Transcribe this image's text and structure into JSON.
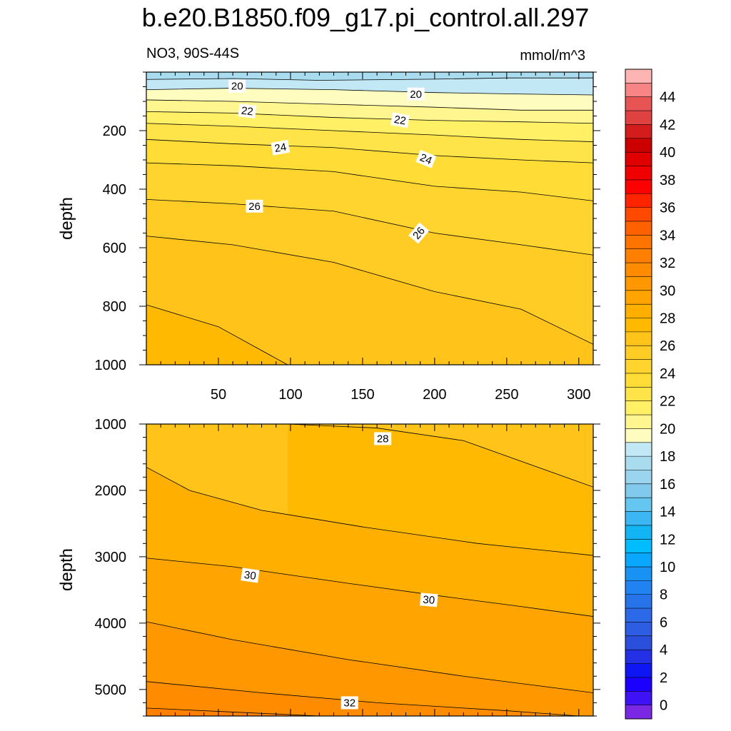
{
  "title": "b.e20.B1850.f09_g17.pi_control.all.297",
  "subtitle_left": "NO3, 90S-44S",
  "subtitle_right": "mmol/m^3",
  "chart_data": [
    {
      "type": "contour",
      "panel": "upper",
      "ylabel": "depth",
      "xlabel": "",
      "xlim": [
        0,
        310
      ],
      "ylim": [
        1000,
        0
      ],
      "xticks": [
        50,
        100,
        150,
        200,
        250,
        300
      ],
      "yticks": [
        200,
        400,
        600,
        800,
        1000
      ],
      "contour_lines": [
        {
          "level": 19,
          "points": [
            [
              0,
              25
            ],
            [
              60,
              22
            ],
            [
              120,
              28
            ],
            [
              200,
              24
            ],
            [
              250,
              20
            ],
            [
              310,
              20
            ]
          ]
        },
        {
          "level": 20,
          "points": [
            [
              0,
              60
            ],
            [
              60,
              55
            ],
            [
              130,
              60
            ],
            [
              200,
              70
            ],
            [
              260,
              75
            ],
            [
              310,
              78
            ]
          ]
        },
        {
          "level": 21,
          "points": [
            [
              0,
              95
            ],
            [
              60,
              100
            ],
            [
              130,
              110
            ],
            [
              200,
              120
            ],
            [
              260,
              130
            ],
            [
              310,
              130
            ]
          ]
        },
        {
          "level": 22,
          "points": [
            [
              0,
              135
            ],
            [
              60,
              140
            ],
            [
              130,
              155
            ],
            [
              200,
              165
            ],
            [
              260,
              170
            ],
            [
              310,
              175
            ]
          ]
        },
        {
          "level": 23,
          "points": [
            [
              0,
              175
            ],
            [
              60,
              185
            ],
            [
              130,
              200
            ],
            [
              200,
              215
            ],
            [
              260,
              230
            ],
            [
              310,
              238
            ]
          ]
        },
        {
          "level": 24,
          "points": [
            [
              0,
              230
            ],
            [
              60,
              245
            ],
            [
              130,
              258
            ],
            [
              200,
              285
            ],
            [
              260,
              300
            ],
            [
              310,
              310
            ]
          ]
        },
        {
          "level": 25,
          "points": [
            [
              0,
              310
            ],
            [
              60,
              320
            ],
            [
              130,
              340
            ],
            [
              200,
              390
            ],
            [
              260,
              410
            ],
            [
              310,
              440
            ]
          ]
        },
        {
          "level": 26,
          "points": [
            [
              0,
              435
            ],
            [
              60,
              450
            ],
            [
              130,
              475
            ],
            [
              200,
              550
            ],
            [
              260,
              590
            ],
            [
              310,
              625
            ]
          ]
        },
        {
          "level": 27,
          "points": [
            [
              0,
              560
            ],
            [
              60,
              590
            ],
            [
              130,
              650
            ],
            [
              200,
              750
            ],
            [
              260,
              810
            ],
            [
              310,
              930
            ]
          ]
        },
        {
          "level": 28,
          "points": [
            [
              0,
              795
            ],
            [
              50,
              870
            ],
            [
              98,
              1000
            ]
          ]
        }
      ],
      "line_labels": [
        {
          "text": "20",
          "x": 63,
          "y": 48,
          "angle": 0
        },
        {
          "text": "20",
          "x": 187,
          "y": 75,
          "angle": 0
        },
        {
          "text": "22",
          "x": 70,
          "y": 133,
          "angle": 7
        },
        {
          "text": "22",
          "x": 176,
          "y": 164,
          "angle": 10
        },
        {
          "text": "24",
          "x": 93,
          "y": 258,
          "angle": -10
        },
        {
          "text": "24",
          "x": 194,
          "y": 297,
          "angle": 22
        },
        {
          "text": "26",
          "x": 75,
          "y": 458,
          "angle": 0
        },
        {
          "text": "26",
          "x": 189,
          "y": 550,
          "angle": -50
        }
      ]
    },
    {
      "type": "contour",
      "panel": "lower",
      "ylabel": "depth",
      "xlabel": "",
      "xlim": [
        0,
        310
      ],
      "ylim": [
        5400,
        1000
      ],
      "yticks": [
        1000,
        2000,
        3000,
        4000,
        5000
      ],
      "contour_lines": [
        {
          "level": 28,
          "points": [
            [
              98,
              1000
            ],
            [
              160,
              1060
            ],
            [
              220,
              1250
            ],
            [
              310,
              1950
            ]
          ]
        },
        {
          "level": 29,
          "points": [
            [
              0,
              1650
            ],
            [
              30,
              2000
            ],
            [
              80,
              2300
            ],
            [
              150,
              2550
            ],
            [
              230,
              2800
            ],
            [
              310,
              2980
            ]
          ]
        },
        {
          "level": 30,
          "points": [
            [
              0,
              3020
            ],
            [
              60,
              3150
            ],
            [
              140,
              3400
            ],
            [
              200,
              3580
            ],
            [
              260,
              3750
            ],
            [
              310,
              3900
            ]
          ]
        },
        {
          "level": 31,
          "points": [
            [
              0,
              3980
            ],
            [
              60,
              4250
            ],
            [
              140,
              4550
            ],
            [
              220,
              4800
            ],
            [
              310,
              5050
            ]
          ]
        },
        {
          "level": 32,
          "points": [
            [
              0,
              4880
            ],
            [
              80,
              5050
            ],
            [
              160,
              5200
            ],
            [
              250,
              5320
            ],
            [
              300,
              5400
            ]
          ]
        },
        {
          "level": 33,
          "points": [
            [
              0,
              5280
            ],
            [
              60,
              5340
            ],
            [
              120,
              5400
            ]
          ]
        }
      ],
      "line_labels": [
        {
          "text": "28",
          "x": 164,
          "y": 1220,
          "angle": 0
        },
        {
          "text": "30",
          "x": 72,
          "y": 3280,
          "angle": 8
        },
        {
          "text": "30",
          "x": 196,
          "y": 3650,
          "angle": 5
        },
        {
          "text": "32",
          "x": 141,
          "y": 5200,
          "angle": 0
        }
      ]
    }
  ],
  "colorbar": {
    "labels": [
      "44",
      "42",
      "40",
      "38",
      "36",
      "34",
      "32",
      "30",
      "28",
      "26",
      "24",
      "22",
      "20",
      "18",
      "16",
      "14",
      "12",
      "10",
      "8",
      "6",
      "4",
      "2",
      "0"
    ],
    "levels": [
      46,
      45,
      44,
      43,
      42,
      41,
      40,
      39,
      38,
      37,
      36,
      35,
      34,
      33,
      32,
      31,
      30,
      29,
      28,
      27,
      26,
      25,
      24,
      23,
      22,
      21,
      20,
      19,
      18,
      17,
      16,
      15,
      14,
      13,
      12,
      11,
      10,
      9,
      8,
      7,
      6,
      5,
      4,
      3,
      2,
      1,
      0
    ],
    "colors": [
      "#ffb4b4",
      "#f78585",
      "#e85454",
      "#e04141",
      "#d51c1c",
      "#cc0000",
      "#e10000",
      "#f00000",
      "#ff0000",
      "#ff2400",
      "#ff4800",
      "#ff6000",
      "#ff7400",
      "#ff8000",
      "#ff8c00",
      "#ff9800",
      "#ffa400",
      "#ffaf00",
      "#ffb900",
      "#ffc31a",
      "#ffcc26",
      "#ffd42e",
      "#ffdc36",
      "#ffe449",
      "#fff066",
      "#fff68f",
      "#fffcc0",
      "#c2e8f5",
      "#aadcf0",
      "#9bd4ef",
      "#82caed",
      "#64c6f1",
      "#3cb7f3",
      "#12b4f4",
      "#01bcff",
      "#0aa7ff",
      "#1893f3",
      "#2183f2",
      "#2773ea",
      "#2c69e8",
      "#2c5de2",
      "#2b4fdd",
      "#2430e6",
      "#0f16f4",
      "#1c00ff",
      "#3e12f5",
      "#7a28e4"
    ]
  }
}
